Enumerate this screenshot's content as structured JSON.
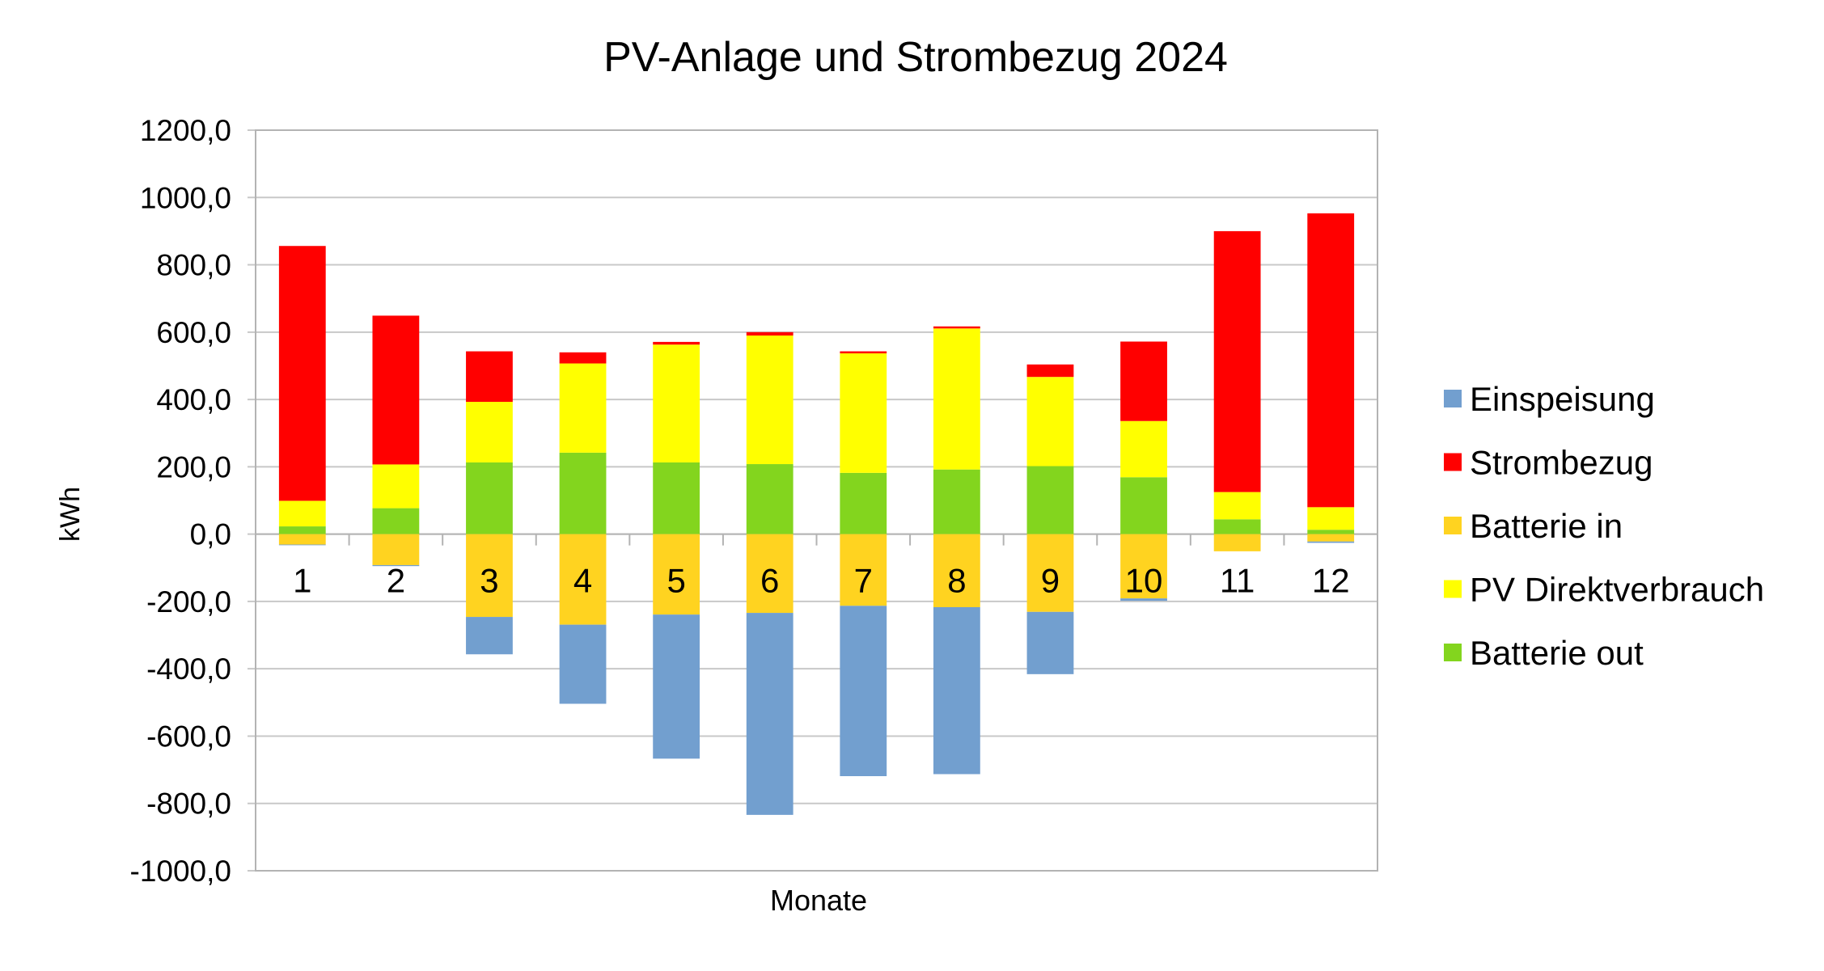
{
  "chart_data": {
    "type": "bar",
    "stacked": true,
    "title": "PV-Anlage und Strombezug 2024",
    "xlabel": "Monate",
    "ylabel": "kWh",
    "ylim": [
      -1000,
      1200
    ],
    "ytick_step": 200,
    "ytick_labels": [
      "1200,0",
      "1000,0",
      "800,0",
      "600,0",
      "400,0",
      "200,0",
      "0,0",
      "-200,0",
      "-400,0",
      "-600,0",
      "-800,0",
      "-1000,0"
    ],
    "grid": true,
    "legend_position": "right",
    "categories": [
      "1",
      "2",
      "3",
      "4",
      "5",
      "6",
      "7",
      "8",
      "9",
      "10",
      "11",
      "12"
    ],
    "series": [
      {
        "name": "Einspeisung",
        "color": "#729fcf",
        "values": [
          -2,
          -3,
          -111,
          -235,
          -428,
          -600,
          -506,
          -496,
          -185,
          -7,
          0,
          -4
        ]
      },
      {
        "name": "Strombezug",
        "color": "#ff0000",
        "values": [
          757,
          442,
          150,
          33,
          8,
          10,
          6,
          6,
          37,
          236,
          775,
          873
        ]
      },
      {
        "name": "Batterie in",
        "color": "#ffd320",
        "values": [
          -31,
          -92,
          -246,
          -269,
          -239,
          -234,
          -213,
          -217,
          -231,
          -191,
          -51,
          -22
        ]
      },
      {
        "name": "PV Direktverbrauch",
        "color": "#ffff00",
        "values": [
          76,
          130,
          180,
          265,
          350,
          382,
          355,
          419,
          265,
          167,
          81,
          67
        ]
      },
      {
        "name": "Batterie out",
        "color": "#83d51e",
        "values": [
          23,
          77,
          213,
          242,
          213,
          208,
          182,
          192,
          202,
          169,
          44,
          13
        ]
      }
    ],
    "stack_order_positive": [
      "Batterie out",
      "PV Direktverbrauch",
      "Strombezug"
    ],
    "stack_order_negative": [
      "Batterie in",
      "Einspeisung"
    ]
  }
}
